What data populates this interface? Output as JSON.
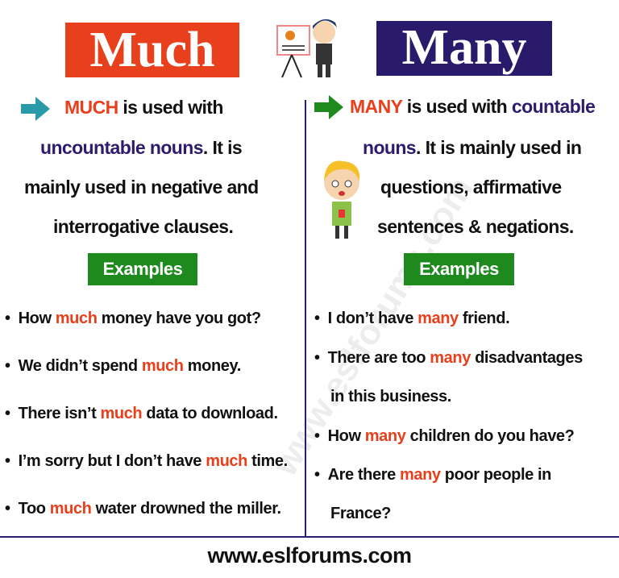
{
  "colors": {
    "much": "#e8401c",
    "many_box": "#2a1a6b",
    "highlight_purple": "#2d1b6e",
    "examples_green": "#1e8a1e",
    "arrow_teal": "#2a9aa8",
    "arrow_green": "#1e8a1e"
  },
  "much": {
    "title": "Much",
    "desc": {
      "l1a": "MUCH",
      "l1b": " is used with",
      "l2a": "uncountable nouns",
      "l2b": ". It is",
      "l3": "mainly used in negative and",
      "l4": "interrogative clauses."
    },
    "examples_label": "Examples",
    "examples": [
      {
        "pre": "How ",
        "hl": "much",
        "post": " money have you got?"
      },
      {
        "pre": "We didn’t spend ",
        "hl": "much",
        "post": " money."
      },
      {
        "pre": "There isn’t ",
        "hl": "much",
        "post": " data to download."
      },
      {
        "pre": "I’m sorry but I don’t have ",
        "hl": "much",
        "post": " time."
      },
      {
        "pre": "Too ",
        "hl": "much",
        "post": " water drowned the miller."
      }
    ]
  },
  "many": {
    "title": "Many",
    "desc": {
      "l1a": "MANY",
      "l1b": " is used with ",
      "l1c": "countable",
      "l2a": "nouns",
      "l2b": ". It is mainly used in",
      "l3": "questions, affirmative",
      "l4": "sentences & negations."
    },
    "examples_label": "Examples",
    "examples": [
      {
        "pre": "I don’t have ",
        "hl": "many",
        "post": " friend."
      },
      {
        "pre": "There are too ",
        "hl": "many",
        "post": " disadvantages",
        "cont": "in this business."
      },
      {
        "pre": "How ",
        "hl": "many",
        "post": " children do you have?"
      },
      {
        "pre": "Are there ",
        "hl": "many",
        "post": " poor people in",
        "cont": "France?"
      }
    ]
  },
  "watermark": "www.eslforums.com",
  "footer": "www.eslforums.com"
}
